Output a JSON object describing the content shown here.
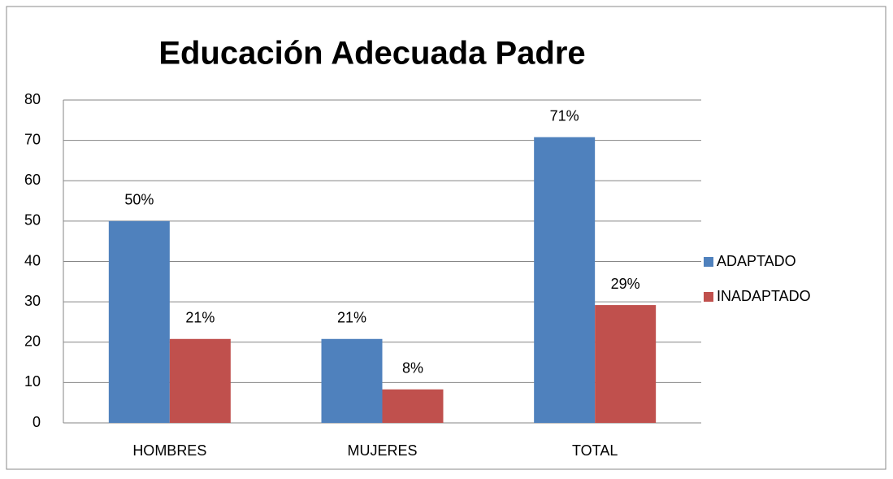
{
  "chart_data": {
    "type": "bar",
    "title": "Educación Adecuada Padre",
    "categories": [
      "HOMBRES",
      "MUJERES",
      "TOTAL"
    ],
    "series": [
      {
        "name": "ADAPTADO",
        "color": "#4f81bd",
        "values": [
          50,
          20.8,
          70.8
        ],
        "value_labels": [
          "50%",
          "21%",
          "71%"
        ]
      },
      {
        "name": "INADAPTADO",
        "color": "#c0504d",
        "values": [
          20.8,
          8.3,
          29.2
        ],
        "value_labels": [
          "21%",
          "8%",
          "29%"
        ]
      }
    ],
    "ylim": [
      0,
      80
    ],
    "yticks": [
      0,
      10,
      20,
      30,
      40,
      50,
      60,
      70,
      80
    ],
    "grid": true,
    "legend": "right"
  }
}
